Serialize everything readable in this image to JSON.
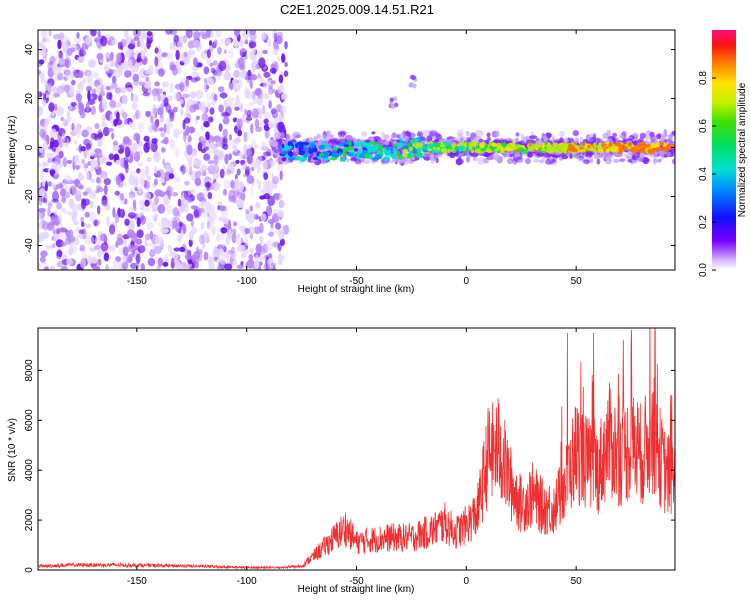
{
  "title": "C2E1.2025.009.14.51.R21",
  "chart_data": [
    {
      "type": "heatmap",
      "title": "C2E1.2025.009.14.51.R21",
      "xlabel": "Height of straight line (km)",
      "ylabel": "Frequency (Hz)",
      "xlim": [
        -195,
        95
      ],
      "ylim": [
        -50,
        48
      ],
      "xticks": [
        -150,
        -100,
        -50,
        0,
        50
      ],
      "yticks": [
        -40,
        -20,
        0,
        20,
        40
      ],
      "colorbar": {
        "label": "Normalized spectral amplitude",
        "range": [
          0,
          1
        ],
        "ticks": [
          0.0,
          0.2,
          0.4,
          0.6,
          0.8
        ],
        "tick_labels": [
          "0.0",
          "0.2",
          "0.4",
          "0.6",
          "0.8"
        ]
      },
      "features": [
        {
          "name": "noise",
          "x_range": [
            -195,
            -82
          ],
          "y_range": [
            -50,
            48
          ],
          "amplitude": 0.15
        },
        {
          "name": "echo-band",
          "x_range": [
            -88,
            95
          ],
          "center_hz": 0,
          "halfwidth_hz": 6,
          "peak_amplitude": 0.95
        },
        {
          "name": "blob-1",
          "x": -33,
          "y": 18,
          "amplitude": 0.15
        },
        {
          "name": "blob-2",
          "x": -24,
          "y": 27,
          "amplitude": 0.1
        }
      ]
    },
    {
      "type": "line",
      "xlabel": "Height of straight line (km)",
      "ylabel": "SNR (10 * v/v)",
      "xlim": [
        -195,
        95
      ],
      "ylim": [
        0,
        9700
      ],
      "xticks": [
        -150,
        -100,
        -50,
        0,
        50
      ],
      "yticks": [
        0,
        2000,
        4000,
        6000,
        8000
      ],
      "color": "#f03030",
      "series": [
        {
          "name": "SNR envelope",
          "x": [
            -195,
            -180,
            -160,
            -140,
            -120,
            -100,
            -85,
            -75,
            -65,
            -55,
            -50,
            -45,
            -35,
            -25,
            -15,
            -10,
            -5,
            0,
            5,
            10,
            15,
            20,
            25,
            30,
            35,
            40,
            45,
            50,
            55,
            60,
            65,
            70,
            75,
            80,
            85,
            90,
            95
          ],
          "y": [
            150,
            200,
            200,
            180,
            150,
            100,
            100,
            150,
            900,
            1700,
            1100,
            1200,
            1300,
            1300,
            1600,
            1900,
            1500,
            1800,
            2300,
            4600,
            4900,
            3500,
            2600,
            3000,
            2500,
            2500,
            3400,
            4800,
            4300,
            4000,
            5200,
            4500,
            5000,
            4600,
            5500,
            4000,
            3500
          ]
        }
      ],
      "peaks": [
        {
          "x": 12,
          "y": 6700
        },
        {
          "x": 46,
          "y": 9500
        },
        {
          "x": 58,
          "y": 9500
        },
        {
          "x": 75,
          "y": 9100
        },
        {
          "x": 86,
          "y": 9700
        },
        {
          "x": 93,
          "y": 7000
        }
      ]
    }
  ]
}
